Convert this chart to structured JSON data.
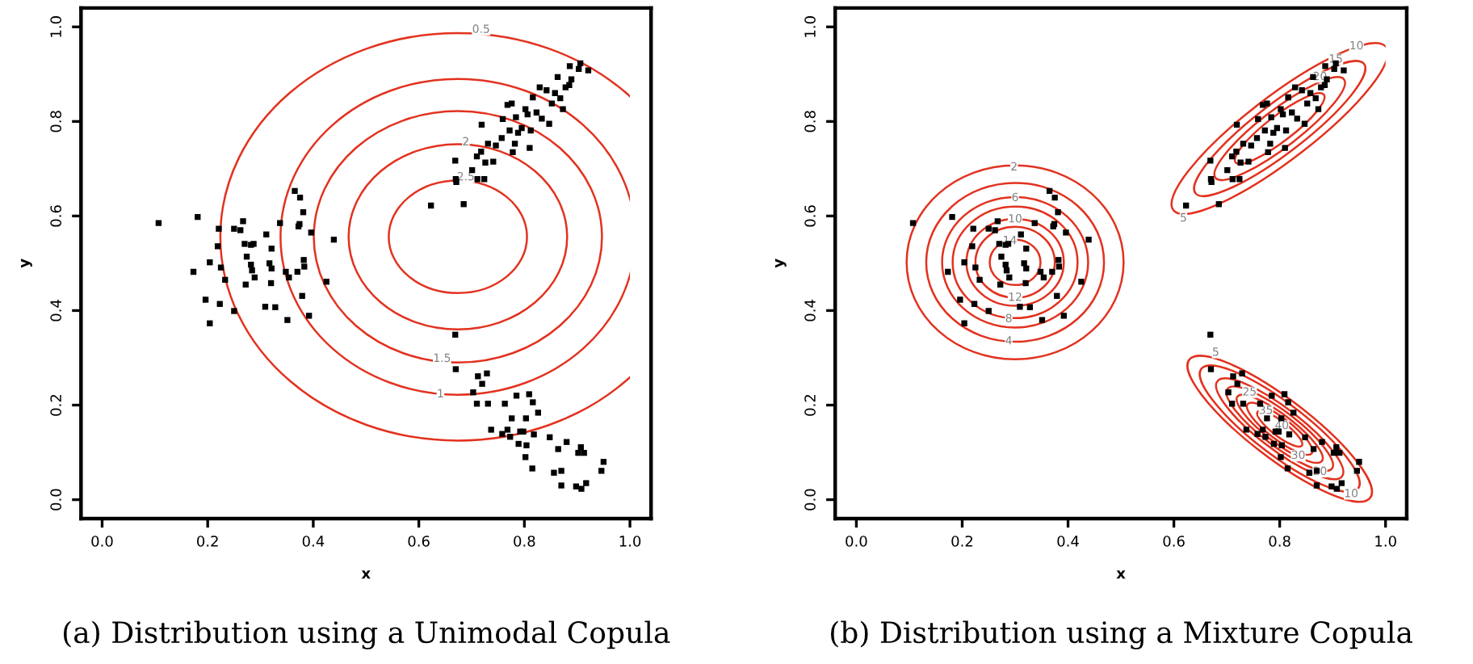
{
  "chart_data": [
    {
      "type": "scatter",
      "xlabel": "x",
      "ylabel": "y",
      "xlim": [
        -0.04,
        1.04
      ],
      "ylim": [
        -0.04,
        1.04
      ],
      "xticks": [
        {
          "value": 0,
          "label": "0.0"
        },
        {
          "value": 0.2,
          "label": "0.2"
        },
        {
          "value": 0.4,
          "label": "0.4"
        },
        {
          "value": 0.6,
          "label": "0.6"
        },
        {
          "value": 0.8,
          "label": "0.8"
        },
        {
          "value": 1,
          "label": "1.0"
        }
      ],
      "yticks": [
        {
          "value": 0,
          "label": "0.0"
        },
        {
          "value": 0.2,
          "label": "0.2"
        },
        {
          "value": 0.4,
          "label": "0.4"
        },
        {
          "value": 0.6,
          "label": "0.6"
        },
        {
          "value": 0.8,
          "label": "0.8"
        },
        {
          "value": 1,
          "label": "1.0"
        }
      ],
      "grid": false,
      "legend": false,
      "marker": "square",
      "series": [
        {
          "color": "#000000",
          "x": [
            0.107,
            0.181,
            0.173,
            0.204,
            0.196,
            0.204,
            0.223,
            0.221,
            0.219,
            0.225,
            0.233,
            0.25,
            0.25,
            0.262,
            0.267,
            0.27,
            0.282,
            0.287,
            0.274,
            0.282,
            0.284,
            0.289,
            0.272,
            0.311,
            0.321,
            0.317,
            0.321,
            0.32,
            0.309,
            0.328,
            0.337,
            0.348,
            0.354,
            0.351,
            0.365,
            0.375,
            0.381,
            0.372,
            0.374,
            0.396,
            0.37,
            0.382,
            0.383,
            0.379,
            0.392,
            0.425,
            0.439,
            0.623,
            0.685,
            0.669,
            0.671,
            0.67,
            0.701,
            0.711,
            0.724,
            0.71,
            0.718,
            0.719,
            0.726,
            0.741,
            0.731,
            0.746,
            0.757,
            0.759,
            0.768,
            0.776,
            0.772,
            0.778,
            0.782,
            0.788,
            0.784,
            0.795,
            0.802,
            0.806,
            0.81,
            0.812,
            0.816,
            0.823,
            0.829,
            0.833,
            0.842,
            0.847,
            0.852,
            0.858,
            0.863,
            0.868,
            0.873,
            0.878,
            0.885,
            0.886,
            0.889,
            0.903,
            0.906,
            0.921,
            0.669,
            0.67,
            0.712,
            0.729,
            0.72,
            0.703,
            0.71,
            0.731,
            0.763,
            0.785,
            0.809,
            0.816,
            0.826,
            0.776,
            0.803,
            0.737,
            0.758,
            0.768,
            0.773,
            0.792,
            0.798,
            0.818,
            0.789,
            0.804,
            0.802,
            0.815,
            0.848,
            0.864,
            0.88,
            0.907,
            0.902,
            0.913,
            0.856,
            0.87,
            0.87,
            0.898,
            0.908,
            0.917,
            0.946,
            0.95
          ],
          "values": [
            0.585,
            0.598,
            0.482,
            0.502,
            0.423,
            0.373,
            0.414,
            0.573,
            0.536,
            0.491,
            0.465,
            0.399,
            0.573,
            0.57,
            0.589,
            0.541,
            0.539,
            0.541,
            0.514,
            0.497,
            0.485,
            0.47,
            0.455,
            0.561,
            0.531,
            0.5,
            0.489,
            0.458,
            0.408,
            0.407,
            0.585,
            0.482,
            0.47,
            0.38,
            0.653,
            0.639,
            0.608,
            0.578,
            0.583,
            0.565,
            0.482,
            0.507,
            0.493,
            0.431,
            0.389,
            0.461,
            0.55,
            0.622,
            0.625,
            0.717,
            0.672,
            0.678,
            0.697,
            0.678,
            0.678,
            0.726,
            0.736,
            0.793,
            0.713,
            0.715,
            0.753,
            0.749,
            0.765,
            0.805,
            0.835,
            0.838,
            0.781,
            0.735,
            0.753,
            0.776,
            0.809,
            0.786,
            0.826,
            0.815,
            0.744,
            0.781,
            0.851,
            0.819,
            0.872,
            0.806,
            0.866,
            0.795,
            0.838,
            0.86,
            0.894,
            0.849,
            0.826,
            0.872,
            0.877,
            0.917,
            0.889,
            0.911,
            0.923,
            0.908,
            0.349,
            0.276,
            0.261,
            0.267,
            0.245,
            0.227,
            0.203,
            0.203,
            0.203,
            0.22,
            0.223,
            0.206,
            0.184,
            0.172,
            0.172,
            0.148,
            0.139,
            0.148,
            0.133,
            0.144,
            0.144,
            0.138,
            0.118,
            0.115,
            0.09,
            0.066,
            0.132,
            0.107,
            0.122,
            0.111,
            0.099,
            0.099,
            0.057,
            0.03,
            0.061,
            0.028,
            0.023,
            0.035,
            0.061,
            0.08
          ]
        }
      ],
      "annotations": [
        {
          "text": "0.5",
          "x": 0.718,
          "y": 0.994
        },
        {
          "text": "2",
          "x": 0.689,
          "y": 0.756
        },
        {
          "text": "2.5",
          "x": 0.689,
          "y": 0.682
        },
        {
          "text": "1.5",
          "x": 0.644,
          "y": 0.298
        },
        {
          "text": "1",
          "x": 0.641,
          "y": 0.223
        },
        "(a) Distribution using a Unimodal Copula"
      ]
    },
    {
      "type": "scatter",
      "xlabel": "x",
      "ylabel": "y",
      "xlim": [
        -0.04,
        1.04
      ],
      "ylim": [
        -0.04,
        1.04
      ],
      "xticks": [
        {
          "value": 0,
          "label": "0.0"
        },
        {
          "value": 0.2,
          "label": "0.2"
        },
        {
          "value": 0.4,
          "label": "0.4"
        },
        {
          "value": 0.6,
          "label": "0.6"
        },
        {
          "value": 0.8,
          "label": "0.8"
        },
        {
          "value": 1,
          "label": "1.0"
        }
      ],
      "yticks": [
        {
          "value": 0,
          "label": "0.0"
        },
        {
          "value": 0.2,
          "label": "0.2"
        },
        {
          "value": 0.4,
          "label": "0.4"
        },
        {
          "value": 0.6,
          "label": "0.6"
        },
        {
          "value": 0.8,
          "label": "0.8"
        },
        {
          "value": 1,
          "label": "1.0"
        }
      ],
      "grid": false,
      "legend": false,
      "marker": "square",
      "series": [
        {
          "color": "#000000",
          "x": [
            0.107,
            0.181,
            0.173,
            0.204,
            0.196,
            0.204,
            0.223,
            0.221,
            0.219,
            0.225,
            0.233,
            0.25,
            0.25,
            0.262,
            0.267,
            0.27,
            0.282,
            0.287,
            0.274,
            0.282,
            0.284,
            0.289,
            0.272,
            0.311,
            0.321,
            0.317,
            0.321,
            0.32,
            0.309,
            0.328,
            0.337,
            0.348,
            0.354,
            0.351,
            0.365,
            0.375,
            0.381,
            0.372,
            0.374,
            0.396,
            0.37,
            0.382,
            0.383,
            0.379,
            0.392,
            0.425,
            0.439,
            0.623,
            0.685,
            0.669,
            0.671,
            0.67,
            0.701,
            0.711,
            0.724,
            0.71,
            0.718,
            0.719,
            0.726,
            0.741,
            0.731,
            0.746,
            0.757,
            0.759,
            0.768,
            0.776,
            0.772,
            0.778,
            0.782,
            0.788,
            0.784,
            0.795,
            0.802,
            0.806,
            0.81,
            0.812,
            0.816,
            0.823,
            0.829,
            0.833,
            0.842,
            0.847,
            0.852,
            0.858,
            0.863,
            0.868,
            0.873,
            0.878,
            0.885,
            0.886,
            0.889,
            0.903,
            0.906,
            0.921,
            0.669,
            0.67,
            0.712,
            0.729,
            0.72,
            0.703,
            0.71,
            0.731,
            0.763,
            0.785,
            0.809,
            0.816,
            0.826,
            0.776,
            0.803,
            0.737,
            0.758,
            0.768,
            0.773,
            0.792,
            0.798,
            0.818,
            0.789,
            0.804,
            0.802,
            0.815,
            0.848,
            0.864,
            0.88,
            0.907,
            0.902,
            0.913,
            0.856,
            0.87,
            0.87,
            0.898,
            0.908,
            0.917,
            0.946,
            0.95
          ],
          "values": [
            0.585,
            0.598,
            0.482,
            0.502,
            0.423,
            0.373,
            0.414,
            0.573,
            0.536,
            0.491,
            0.465,
            0.399,
            0.573,
            0.57,
            0.589,
            0.541,
            0.539,
            0.541,
            0.514,
            0.497,
            0.485,
            0.47,
            0.455,
            0.561,
            0.531,
            0.5,
            0.489,
            0.458,
            0.408,
            0.407,
            0.585,
            0.482,
            0.47,
            0.38,
            0.653,
            0.639,
            0.608,
            0.578,
            0.583,
            0.565,
            0.482,
            0.507,
            0.493,
            0.431,
            0.389,
            0.461,
            0.55,
            0.622,
            0.625,
            0.717,
            0.672,
            0.678,
            0.697,
            0.678,
            0.678,
            0.726,
            0.736,
            0.793,
            0.713,
            0.715,
            0.753,
            0.749,
            0.765,
            0.805,
            0.835,
            0.838,
            0.781,
            0.735,
            0.753,
            0.776,
            0.809,
            0.786,
            0.826,
            0.815,
            0.744,
            0.781,
            0.851,
            0.819,
            0.872,
            0.806,
            0.866,
            0.795,
            0.838,
            0.86,
            0.894,
            0.849,
            0.826,
            0.872,
            0.877,
            0.917,
            0.889,
            0.911,
            0.923,
            0.908,
            0.349,
            0.276,
            0.261,
            0.267,
            0.245,
            0.227,
            0.203,
            0.203,
            0.203,
            0.22,
            0.223,
            0.206,
            0.184,
            0.172,
            0.172,
            0.148,
            0.139,
            0.148,
            0.133,
            0.144,
            0.144,
            0.138,
            0.118,
            0.115,
            0.09,
            0.066,
            0.132,
            0.107,
            0.122,
            0.111,
            0.099,
            0.099,
            0.057,
            0.03,
            0.061,
            0.028,
            0.023,
            0.035,
            0.061,
            0.08
          ]
        }
      ],
      "annotations": [
        {
          "text": "2",
          "x": 0.298,
          "y": 0.703
        },
        {
          "text": "4",
          "x": 0.288,
          "y": 0.335
        },
        {
          "text": "6",
          "x": 0.3,
          "y": 0.638
        },
        {
          "text": "8",
          "x": 0.288,
          "y": 0.382
        },
        {
          "text": "10",
          "x": 0.3,
          "y": 0.593
        },
        {
          "text": "12",
          "x": 0.3,
          "y": 0.427
        },
        {
          "text": "14",
          "x": 0.29,
          "y": 0.547
        },
        {
          "text": "5",
          "x": 0.618,
          "y": 0.595
        },
        {
          "text": "10",
          "x": 0.945,
          "y": 0.959
        },
        {
          "text": "15",
          "x": 0.906,
          "y": 0.931
        },
        {
          "text": "20",
          "x": 0.876,
          "y": 0.894
        },
        {
          "text": "5",
          "x": 0.679,
          "y": 0.311
        },
        {
          "text": "25",
          "x": 0.743,
          "y": 0.227
        },
        {
          "text": "35",
          "x": 0.774,
          "y": 0.188
        },
        {
          "text": "40",
          "x": 0.804,
          "y": 0.156
        },
        {
          "text": "30",
          "x": 0.835,
          "y": 0.093
        },
        {
          "text": "20",
          "x": 0.876,
          "y": 0.059
        },
        {
          "text": "10",
          "x": 0.935,
          "y": 0.012
        },
        "(b) Distribution using a Mixture Copula"
      ]
    }
  ]
}
